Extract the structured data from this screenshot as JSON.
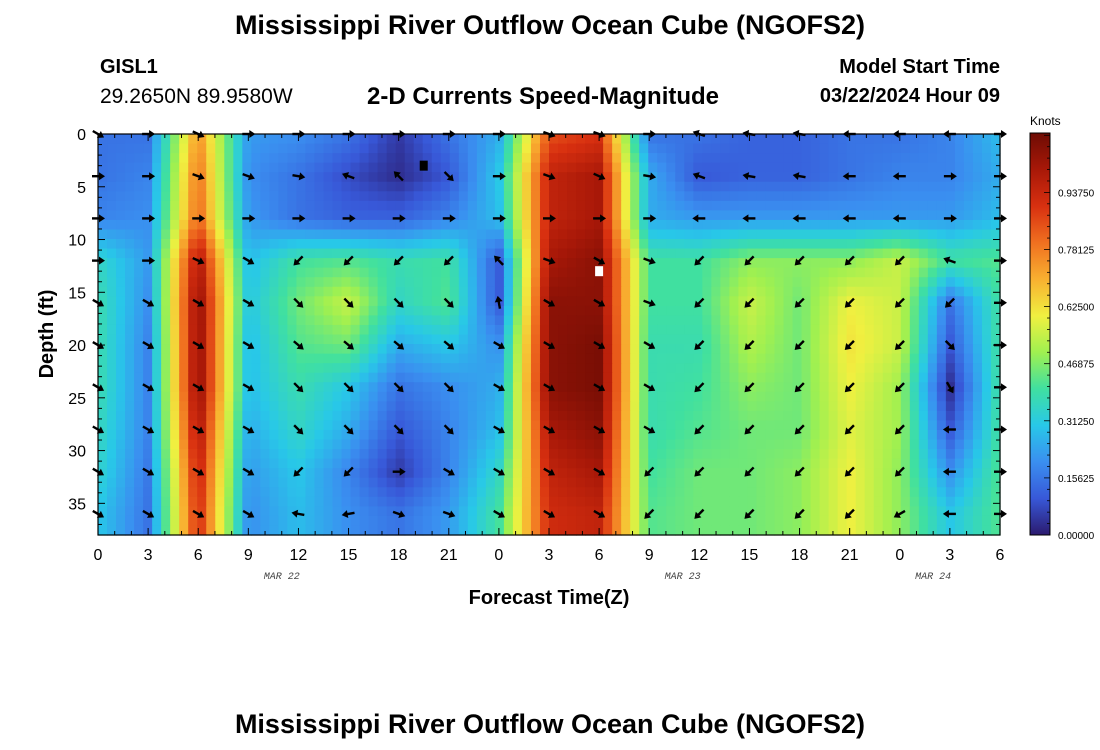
{
  "header": {
    "title": "Mississippi River Outflow Ocean Cube (NGOFS2)",
    "station": "GISL1",
    "coords": "29.2650N  89.9580W",
    "subtitle": "2-D Currents Speed-Magnitude",
    "start_label": "Model Start Time",
    "start_value": "03/22/2024 Hour 09"
  },
  "footer": {
    "title": "Mississippi River Outflow Ocean Cube (NGOFS2)"
  },
  "chart_data": {
    "type": "heatmap",
    "title": "2-D Currents Speed-Magnitude",
    "xlabel": "Forecast Time(Z)",
    "ylabel": "Depth (ft)",
    "x_hours_range": [
      0,
      54
    ],
    "x_tick_labels": [
      "0",
      "3",
      "6",
      "9",
      "12",
      "15",
      "18",
      "21",
      "0",
      "3",
      "6",
      "9",
      "12",
      "15",
      "18",
      "21",
      "0",
      "3",
      "6"
    ],
    "date_labels": [
      {
        "hour": 11,
        "text": "MAR 22"
      },
      {
        "hour": 35,
        "text": "MAR 23"
      },
      {
        "hour": 50,
        "text": "MAR 24"
      }
    ],
    "y_range": [
      0,
      38
    ],
    "y_tick_labels": [
      "0",
      "5",
      "10",
      "15",
      "20",
      "25",
      "30",
      "35"
    ],
    "colorbar": {
      "unit": "Knots",
      "range": [
        0,
        1.1
      ],
      "tick_labels": [
        "0.00000",
        "0.15625",
        "0.31250",
        "0.46875",
        "0.62500",
        "0.78125",
        "0.93750"
      ],
      "colors": [
        "#2b1a6e",
        "#3858d8",
        "#3a8ff0",
        "#28c8e8",
        "#40e0a0",
        "#a0f050",
        "#f0f040",
        "#f8b030",
        "#f07020",
        "#d83010",
        "#a81808",
        "#6e0c04"
      ]
    },
    "depths_ft": [
      0,
      4,
      8,
      12,
      16,
      20,
      24,
      28,
      32,
      36
    ],
    "column_hours": [
      0,
      3,
      6,
      9,
      12,
      15,
      18,
      21,
      24,
      27,
      30,
      33,
      36,
      39,
      42,
      45,
      48,
      51,
      54
    ],
    "speed_knots": [
      [
        0.15,
        0.15,
        0.75,
        0.22,
        0.2,
        0.15,
        0.05,
        0.15,
        0.25,
        0.85,
        0.9,
        0.15,
        0.15,
        0.12,
        0.12,
        0.15,
        0.15,
        0.18,
        0.28
      ],
      [
        0.15,
        0.18,
        0.8,
        0.2,
        0.15,
        0.08,
        0.03,
        0.1,
        0.3,
        0.95,
        1.0,
        0.25,
        0.1,
        0.12,
        0.12,
        0.15,
        0.18,
        0.18,
        0.25
      ],
      [
        0.18,
        0.2,
        0.82,
        0.22,
        0.15,
        0.12,
        0.12,
        0.18,
        0.28,
        0.95,
        1.0,
        0.25,
        0.22,
        0.22,
        0.22,
        0.22,
        0.22,
        0.22,
        0.28
      ],
      [
        0.35,
        0.22,
        1.0,
        0.28,
        0.4,
        0.42,
        0.38,
        0.4,
        0.1,
        1.0,
        1.05,
        0.4,
        0.4,
        0.48,
        0.48,
        0.48,
        0.55,
        0.4,
        0.42
      ],
      [
        0.38,
        0.2,
        1.05,
        0.3,
        0.45,
        0.55,
        0.35,
        0.42,
        0.1,
        1.05,
        1.05,
        0.4,
        0.4,
        0.55,
        0.45,
        0.6,
        0.55,
        0.15,
        0.4
      ],
      [
        0.38,
        0.18,
        1.05,
        0.28,
        0.42,
        0.45,
        0.25,
        0.3,
        0.2,
        1.05,
        1.08,
        0.38,
        0.38,
        0.52,
        0.45,
        0.62,
        0.55,
        0.1,
        0.4
      ],
      [
        0.38,
        0.18,
        1.05,
        0.28,
        0.38,
        0.3,
        0.15,
        0.2,
        0.25,
        1.05,
        1.08,
        0.38,
        0.4,
        0.48,
        0.45,
        0.6,
        0.5,
        0.03,
        0.4
      ],
      [
        0.36,
        0.18,
        1.0,
        0.25,
        0.35,
        0.25,
        0.1,
        0.18,
        0.28,
        1.0,
        1.05,
        0.38,
        0.42,
        0.45,
        0.45,
        0.58,
        0.5,
        0.1,
        0.4
      ],
      [
        0.34,
        0.16,
        0.95,
        0.22,
        0.3,
        0.18,
        0.05,
        0.18,
        0.35,
        0.95,
        1.0,
        0.4,
        0.45,
        0.45,
        0.48,
        0.6,
        0.48,
        0.2,
        0.42
      ],
      [
        0.3,
        0.15,
        0.92,
        0.2,
        0.28,
        0.2,
        0.15,
        0.22,
        0.4,
        0.92,
        0.95,
        0.42,
        0.45,
        0.45,
        0.48,
        0.6,
        0.48,
        0.3,
        0.42
      ]
    ],
    "direction_deg": [
      [
        30,
        0,
        25,
        0,
        0,
        0,
        0,
        0,
        0,
        20,
        20,
        0,
        200,
        190,
        190,
        180,
        180,
        180,
        0
      ],
      [
        0,
        0,
        20,
        20,
        10,
        200,
        225,
        45,
        0,
        20,
        25,
        10,
        200,
        190,
        190,
        180,
        180,
        0,
        0
      ],
      [
        0,
        0,
        0,
        0,
        0,
        0,
        0,
        0,
        0,
        0,
        0,
        0,
        180,
        180,
        180,
        180,
        180,
        0,
        0
      ],
      [
        0,
        0,
        25,
        30,
        135,
        135,
        135,
        135,
        225,
        20,
        30,
        20,
        135,
        135,
        135,
        135,
        135,
        200,
        0
      ],
      [
        30,
        30,
        30,
        30,
        45,
        45,
        45,
        45,
        260,
        30,
        30,
        20,
        135,
        135,
        135,
        135,
        135,
        135,
        0
      ],
      [
        30,
        30,
        30,
        30,
        40,
        40,
        40,
        40,
        30,
        30,
        30,
        30,
        135,
        135,
        135,
        135,
        135,
        45,
        0
      ],
      [
        30,
        30,
        30,
        30,
        45,
        45,
        45,
        45,
        30,
        30,
        30,
        30,
        135,
        135,
        135,
        135,
        135,
        60,
        0
      ],
      [
        30,
        30,
        30,
        30,
        45,
        45,
        45,
        45,
        30,
        30,
        30,
        30,
        135,
        135,
        135,
        135,
        135,
        180,
        0
      ],
      [
        30,
        30,
        30,
        30,
        135,
        135,
        0,
        30,
        30,
        30,
        30,
        135,
        135,
        135,
        135,
        135,
        135,
        180,
        0
      ],
      [
        30,
        30,
        30,
        30,
        190,
        170,
        20,
        20,
        30,
        30,
        30,
        135,
        135,
        135,
        135,
        135,
        150,
        180,
        0
      ]
    ],
    "markers": [
      {
        "hour": 19.5,
        "depth": 3,
        "color": "#000000"
      },
      {
        "hour": 30,
        "depth": 13,
        "color": "#ffffff"
      }
    ]
  }
}
